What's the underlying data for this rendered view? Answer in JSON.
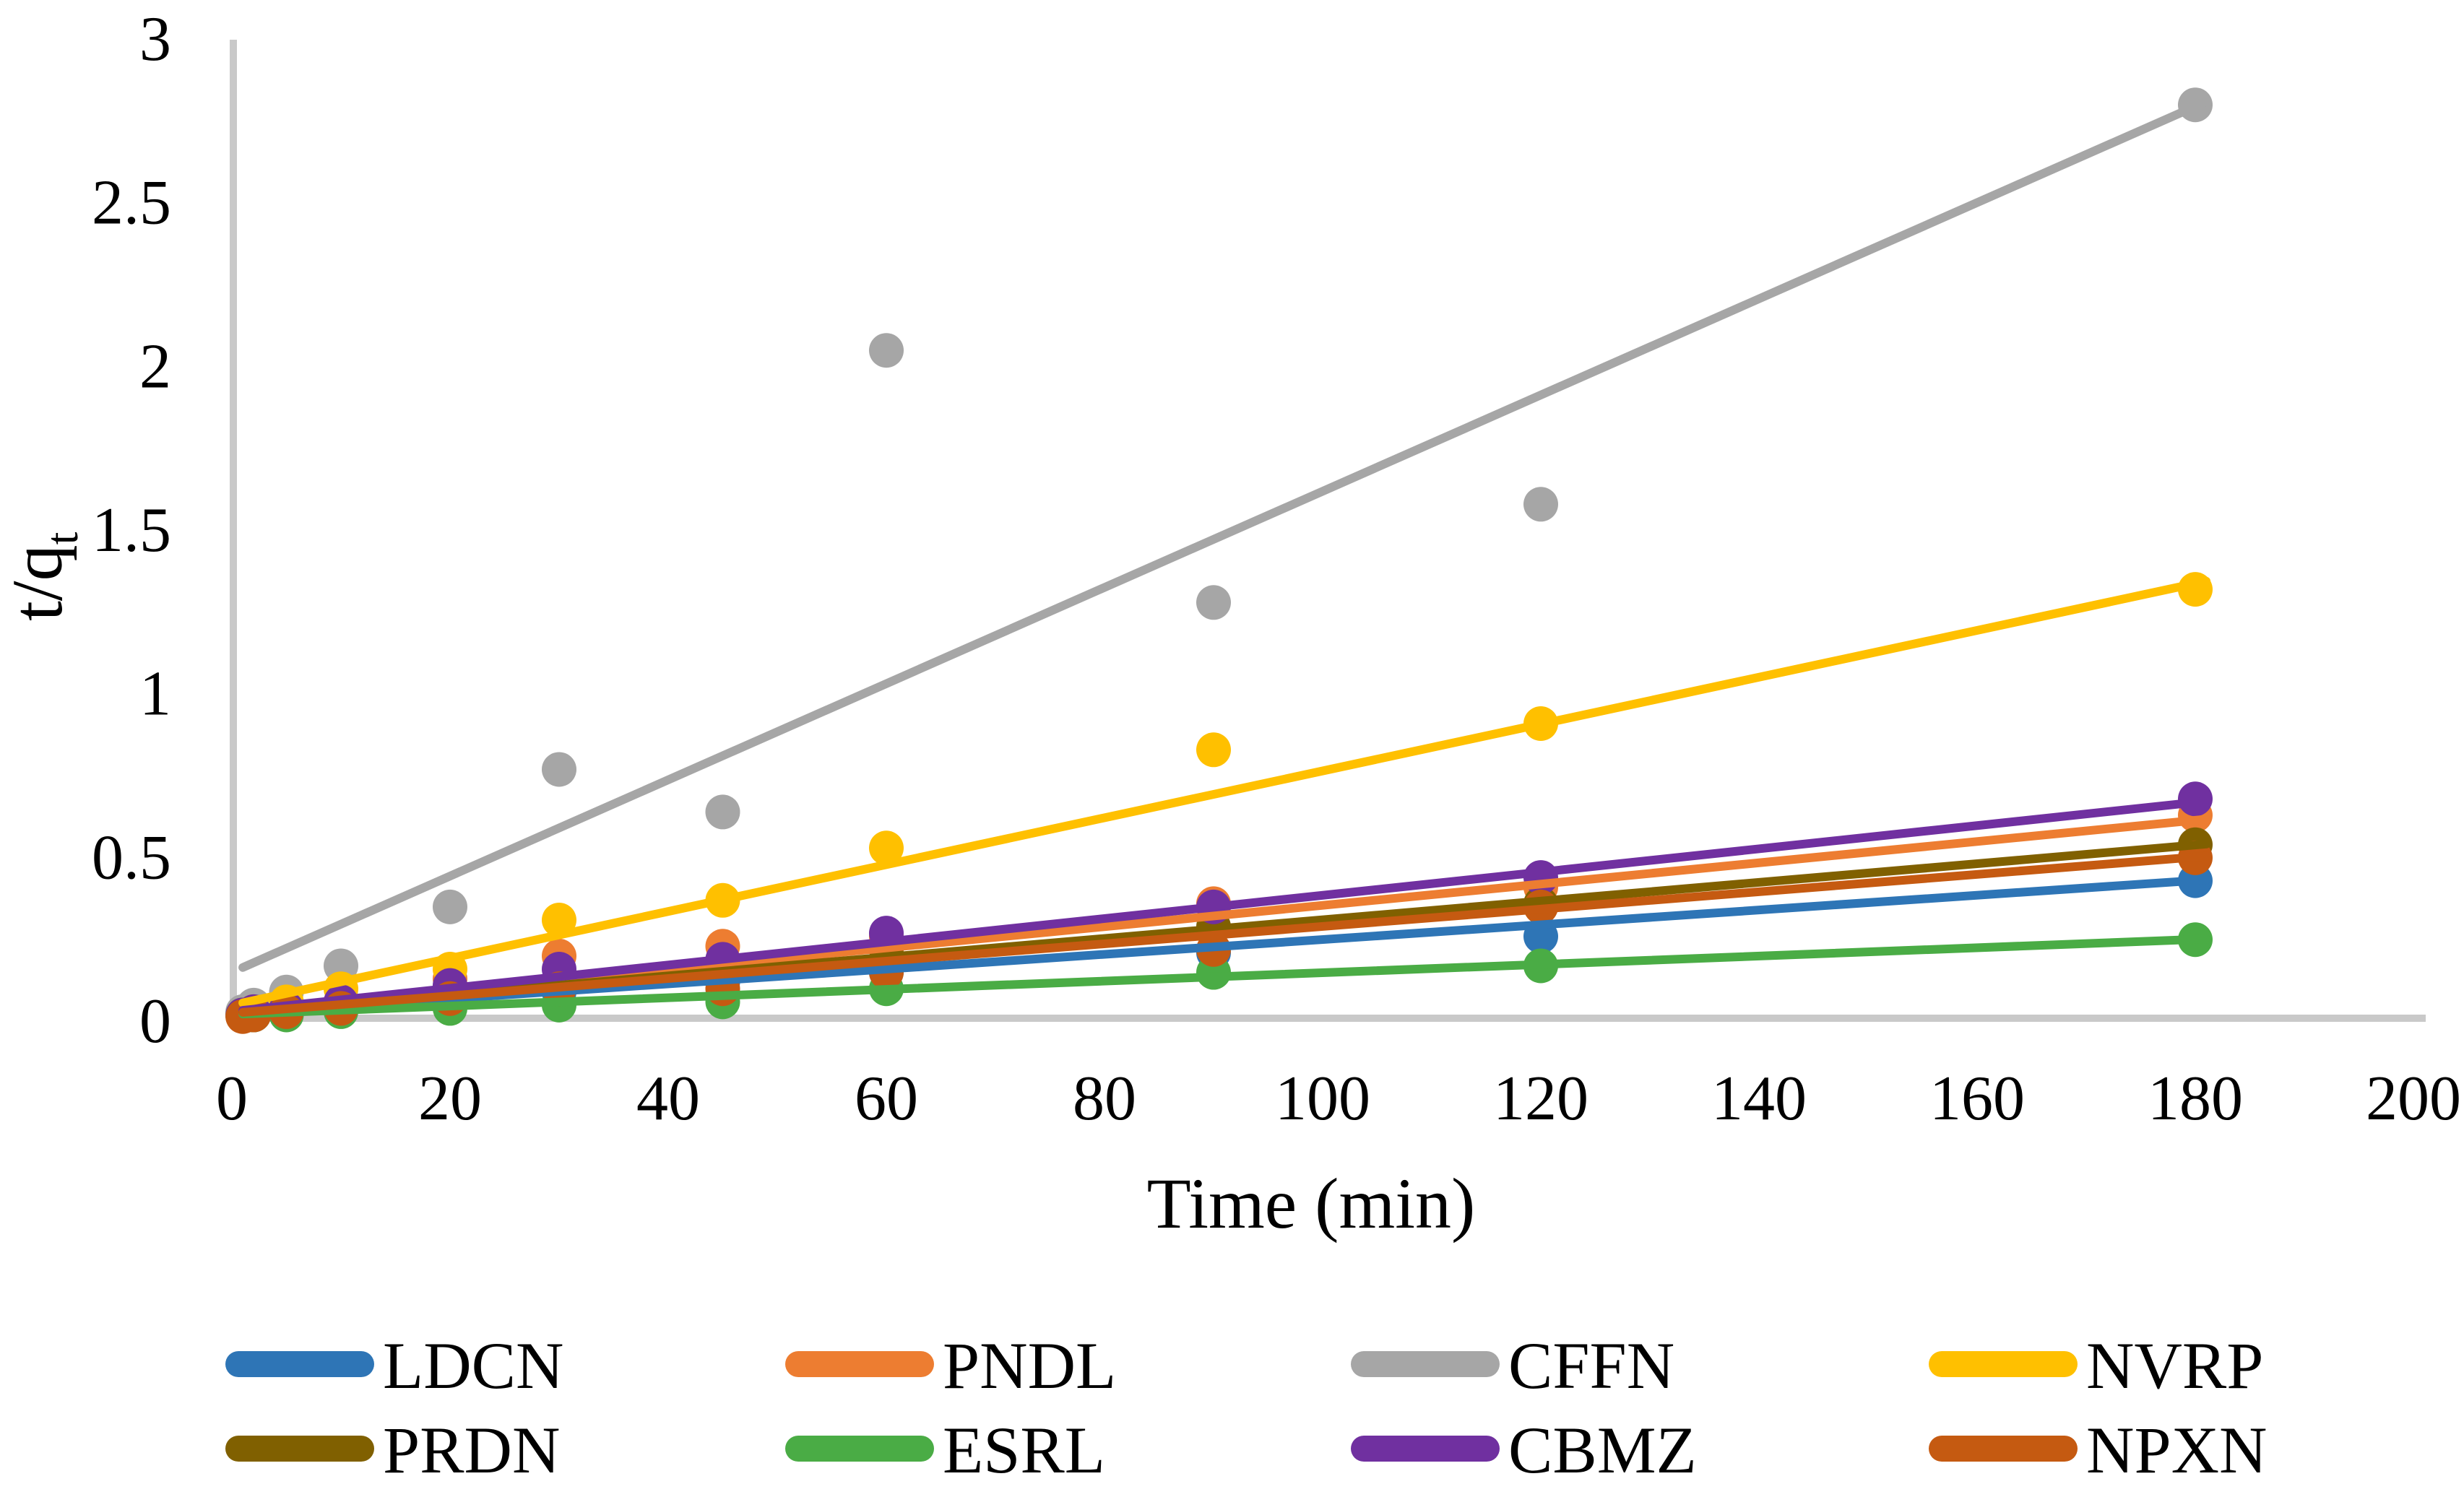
{
  "chart_data": {
    "type": "scatter",
    "title": "",
    "xlabel": "Time (min)",
    "ylabel_main": "t/q",
    "ylabel_sub": "t",
    "xlim": [
      0,
      200
    ],
    "ylim": [
      0,
      3
    ],
    "x_ticks": [
      0,
      20,
      40,
      60,
      80,
      100,
      120,
      140,
      160,
      180,
      200
    ],
    "y_ticks": [
      "0",
      "0.5",
      "1",
      "1.5",
      "2",
      "2.5",
      "3"
    ],
    "grid": false,
    "legend_position": "bottom",
    "axis_color": "#C9C9C9",
    "x": [
      1,
      2,
      5,
      10,
      20,
      30,
      45,
      60,
      90,
      120,
      180
    ],
    "series": [
      {
        "name": "LDCN",
        "color": "#2E75B6",
        "values": [
          0.01,
          0.01,
          0.02,
          0.03,
          0.05,
          0.08,
          0.11,
          0.14,
          0.2,
          0.25,
          0.42
        ],
        "trend": {
          "t1": 1,
          "v1": 0.017,
          "t2": 181,
          "v2": 0.423
        }
      },
      {
        "name": "PNDL",
        "color": "#ED7D31",
        "values": [
          0.01,
          0.02,
          0.03,
          0.05,
          0.12,
          0.19,
          0.22,
          0.25,
          0.35,
          0.4,
          0.62
        ],
        "trend": {
          "t1": 1,
          "v1": 0.023,
          "t2": 181,
          "v2": 0.608
        }
      },
      {
        "name": "CFFN",
        "color": "#A6A6A6",
        "values": [
          0.02,
          0.04,
          0.08,
          0.16,
          0.34,
          0.76,
          0.63,
          2.04,
          1.27,
          1.57,
          2.79
        ],
        "trend": {
          "t1": 1,
          "v1": 0.155,
          "t2": 181,
          "v2": 2.8
        }
      },
      {
        "name": "NVRP",
        "color": "#FFC000",
        "values": [
          0.01,
          0.02,
          0.05,
          0.09,
          0.15,
          0.3,
          0.36,
          0.52,
          0.82,
          0.9,
          1.31
        ],
        "trend": {
          "t1": 1,
          "v1": 0.047,
          "t2": 181,
          "v2": 1.335
        }
      },
      {
        "name": "PRDN",
        "color": "#806000",
        "values": [
          0.01,
          0.01,
          0.02,
          0.04,
          0.07,
          0.1,
          0.14,
          0.21,
          0.28,
          0.35,
          0.53
        ],
        "trend": {
          "t1": 1,
          "v1": 0.018,
          "t2": 181,
          "v2": 0.532
        }
      },
      {
        "name": "ESRL",
        "color": "#4AAC45",
        "values": [
          0.01,
          0.01,
          0.01,
          0.02,
          0.03,
          0.04,
          0.05,
          0.09,
          0.14,
          0.16,
          0.24
        ],
        "trend": {
          "t1": 1,
          "v1": 0.013,
          "t2": 181,
          "v2": 0.242
        }
      },
      {
        "name": "CBMZ",
        "color": "#7030A0",
        "values": [
          0.01,
          0.02,
          0.03,
          0.05,
          0.1,
          0.15,
          0.18,
          0.26,
          0.34,
          0.43,
          0.67
        ],
        "trend": {
          "t1": 1,
          "v1": 0.024,
          "t2": 181,
          "v2": 0.663
        }
      },
      {
        "name": "NPXN",
        "color": "#C55A11",
        "values": [
          0.005,
          0.01,
          0.02,
          0.03,
          0.06,
          0.09,
          0.09,
          0.14,
          0.21,
          0.34,
          0.49
        ],
        "trend": {
          "t1": 1,
          "v1": 0.018,
          "t2": 181,
          "v2": 0.495
        }
      }
    ],
    "legend_rows": [
      [
        "LDCN",
        "PNDL",
        "CFFN",
        "NVRP"
      ],
      [
        "PRDN",
        "ESRL",
        "CBMZ",
        "NPXN"
      ]
    ]
  }
}
